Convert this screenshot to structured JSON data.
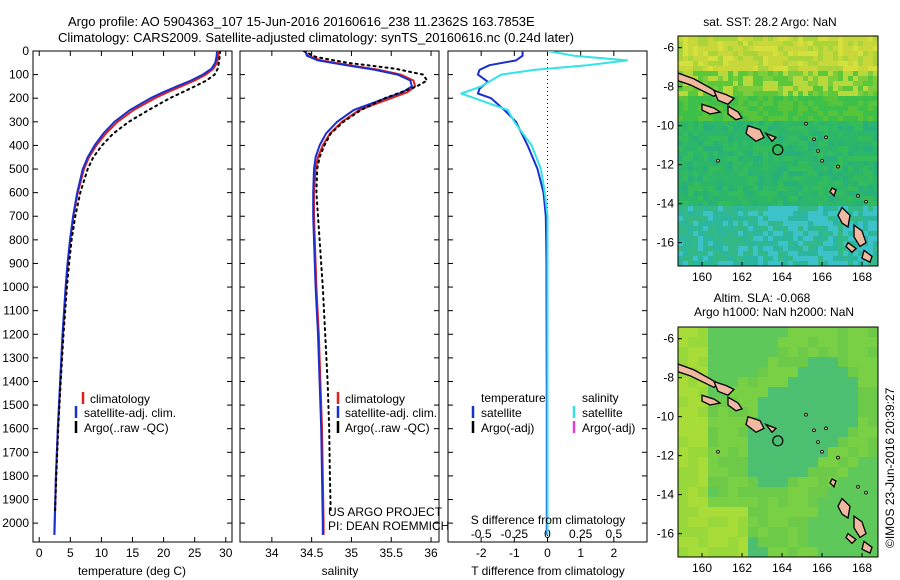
{
  "header": {
    "title_line1": "Argo profile: AO 5904363_107 15-Jun-2016 20160616_238 11.2362S 163.7853E",
    "title_line2": "Climatology: CARS2009. Satellite-adjusted climatology: synTS_20160616.nc (0.24d later)"
  },
  "side_label": "©IMOS 23-Jun-2016 20:39:27",
  "colors": {
    "climatology": "#e0201c",
    "satellite": "#1a2fd0",
    "argo": "#000000",
    "salinity_satellite": "#33e3e6",
    "salinity_argo": "#e040d0",
    "land": "#f0b8a0"
  },
  "chart_data": [
    {
      "id": "temperature",
      "type": "line",
      "xlabel": "temperature (deg C)",
      "ylabel": "",
      "xlim": [
        -1,
        31
      ],
      "ylim": [
        2080,
        0
      ],
      "xticks": [
        0,
        5,
        10,
        15,
        20,
        25,
        30
      ],
      "yticks": [
        0,
        100,
        200,
        300,
        400,
        500,
        600,
        700,
        800,
        900,
        1000,
        1100,
        1200,
        1300,
        1400,
        1500,
        1600,
        1700,
        1800,
        1900,
        2000
      ],
      "legend": [
        "climatology",
        "satellite-adj. clim.",
        "Argo(..raw -QC)"
      ],
      "legend_placement": "lower-center",
      "series": [
        {
          "name": "climatology",
          "depth": [
            0,
            25,
            50,
            75,
            100,
            125,
            150,
            175,
            200,
            250,
            300,
            350,
            400,
            450,
            500,
            600,
            700,
            800,
            900,
            1000,
            1200,
            1400,
            1600,
            1800,
            2000,
            2050
          ],
          "values": [
            28.9,
            28.8,
            28.6,
            28.0,
            26.8,
            25.0,
            22.8,
            20.6,
            18.6,
            15.2,
            12.6,
            10.7,
            9.2,
            8.0,
            7.2,
            6.2,
            5.5,
            5.0,
            4.6,
            4.3,
            3.8,
            3.4,
            3.0,
            2.7,
            2.5,
            2.45
          ],
          "style": "solid"
        },
        {
          "name": "satellite-adj. clim.",
          "depth": [
            0,
            25,
            50,
            75,
            100,
            125,
            150,
            175,
            200,
            250,
            300,
            350,
            400,
            450,
            500,
            600,
            700,
            800,
            900,
            1000,
            1200,
            1400,
            1600,
            1800,
            2000,
            2050
          ],
          "values": [
            28.6,
            28.5,
            28.3,
            27.7,
            26.3,
            24.4,
            22.1,
            19.9,
            17.9,
            14.6,
            12.1,
            10.3,
            8.9,
            7.8,
            7.0,
            6.1,
            5.45,
            4.95,
            4.55,
            4.25,
            3.75,
            3.35,
            2.98,
            2.68,
            2.48,
            2.43
          ],
          "style": "solid"
        },
        {
          "name": "Argo(..raw -QC)",
          "depth": [
            0,
            25,
            50,
            75,
            100,
            125,
            150,
            175,
            200,
            250,
            300,
            350,
            400,
            450,
            500,
            600,
            700,
            800,
            900,
            1000,
            1200,
            1400,
            1600,
            1800,
            1950
          ],
          "values": [
            29.1,
            29.0,
            28.9,
            28.7,
            28.2,
            26.9,
            25.0,
            23.0,
            21.0,
            17.6,
            14.4,
            11.9,
            10.1,
            8.7,
            7.8,
            6.6,
            5.8,
            5.2,
            4.8,
            4.45,
            3.9,
            3.45,
            3.05,
            2.75,
            2.55
          ],
          "style": "dotted"
        }
      ]
    },
    {
      "id": "salinity",
      "type": "line",
      "xlabel": "salinity",
      "ylabel": "",
      "xlim": [
        33.6,
        36.1
      ],
      "ylim": [
        2080,
        0
      ],
      "xticks": [
        34,
        34.5,
        35,
        35.5,
        36
      ],
      "xtick_labels": [
        "34",
        "34.5",
        "35",
        "35.5",
        "36"
      ],
      "legend": [
        "climatology",
        "satellite-adj. clim.",
        "Argo(..raw -QC)"
      ],
      "legend_placement": "lower-right",
      "annotation": [
        "US ARGO PROJECT",
        "PI: DEAN ROEMMICH"
      ],
      "series": [
        {
          "name": "climatology",
          "depth": [
            0,
            20,
            40,
            60,
            80,
            100,
            125,
            150,
            175,
            200,
            250,
            300,
            350,
            400,
            450,
            500,
            600,
            700,
            800,
            1000,
            1200,
            1400,
            1600,
            1800,
            2000,
            2050
          ],
          "values": [
            34.42,
            34.45,
            34.62,
            34.98,
            35.35,
            35.62,
            35.78,
            35.8,
            35.7,
            35.5,
            35.1,
            34.88,
            34.73,
            34.64,
            34.58,
            34.55,
            34.53,
            34.53,
            34.54,
            34.56,
            34.59,
            34.61,
            34.63,
            34.64,
            34.65,
            34.65
          ],
          "style": "solid"
        },
        {
          "name": "satellite-adj. clim.",
          "depth": [
            0,
            20,
            40,
            60,
            80,
            100,
            125,
            150,
            175,
            200,
            250,
            300,
            350,
            400,
            450,
            500,
            600,
            700,
            800,
            1000,
            1200,
            1400,
            1600,
            1800,
            2000,
            2050
          ],
          "values": [
            34.42,
            34.44,
            34.58,
            34.93,
            35.3,
            35.58,
            35.74,
            35.76,
            35.64,
            35.43,
            35.03,
            34.82,
            34.68,
            34.6,
            34.55,
            34.53,
            34.52,
            34.52,
            34.53,
            34.55,
            34.58,
            34.6,
            34.62,
            34.63,
            34.64,
            34.64
          ],
          "style": "solid"
        },
        {
          "name": "Argo(..raw -QC)",
          "depth": [
            0,
            25,
            50,
            75,
            100,
            125,
            150,
            175,
            200,
            250,
            300,
            350,
            400,
            450,
            500,
            600,
            700,
            800,
            900,
            1000,
            1200,
            1400,
            1600,
            1800,
            1950
          ],
          "values": [
            34.4,
            34.55,
            34.95,
            35.55,
            35.9,
            35.95,
            35.82,
            35.62,
            35.42,
            35.12,
            34.9,
            34.74,
            34.66,
            34.6,
            34.57,
            34.56,
            34.58,
            34.6,
            34.62,
            34.64,
            34.67,
            34.7,
            34.72,
            34.73,
            34.74
          ],
          "style": "dotted"
        }
      ]
    },
    {
      "id": "difference",
      "type": "line",
      "xlabel": "T difference from climatology",
      "top_xlabel": "S difference from climatology",
      "xlim": [
        -3.0,
        3.0
      ],
      "ylim": [
        2080,
        0
      ],
      "xticks": [
        -2,
        -1,
        0,
        1,
        2
      ],
      "top_xticks": [
        -0.5,
        -0.25,
        0,
        0.25,
        0.5
      ],
      "legend_temperature": {
        "title": "temperature",
        "items": [
          "satellite",
          "Argo(-adj)"
        ]
      },
      "legend_salinity": {
        "title": "salinity",
        "items": [
          "satellite",
          "Argo(-adj)"
        ]
      },
      "legend_placement": "lower-center",
      "series": [
        {
          "name": "temperature satellite",
          "depth": [
            0,
            20,
            40,
            60,
            80,
            100,
            130,
            160,
            180,
            200,
            250,
            300,
            400,
            500,
            600,
            700,
            800,
            900,
            1000,
            1500,
            2000,
            2050
          ],
          "values": [
            -0.75,
            -0.75,
            -0.95,
            -1.75,
            -2.05,
            -2.1,
            -1.8,
            -2.05,
            -2.1,
            -1.7,
            -1.3,
            -0.95,
            -0.6,
            -0.3,
            -0.12,
            -0.05,
            -0.04,
            -0.03,
            -0.03,
            -0.02,
            -0.02,
            -0.02
          ]
        },
        {
          "name": "salinity satellite",
          "depth": [
            0,
            20,
            40,
            60,
            80,
            100,
            150,
            180,
            200,
            250,
            300,
            400,
            500,
            600,
            700,
            800,
            1000,
            1500,
            2000,
            2050
          ],
          "values": [
            0.0,
            0.2,
            0.6,
            0.3,
            -0.1,
            -0.35,
            -0.5,
            -0.65,
            -0.55,
            -0.3,
            -0.25,
            -0.12,
            -0.05,
            -0.02,
            0.0,
            0.0,
            0.0,
            0.0,
            0.0,
            0.0
          ]
        }
      ]
    },
    {
      "id": "sst_map",
      "type": "heatmap",
      "title": "sat. SST: 28.2  Argo: NaN",
      "xlim": [
        158.8,
        168.8
      ],
      "ylim": [
        -17.2,
        -5.4
      ],
      "xticks": [
        160,
        162,
        164,
        166,
        168
      ],
      "yticks": [
        -6,
        -8,
        -10,
        -12,
        -14,
        -16
      ],
      "marker": {
        "lon": 163.79,
        "lat": -11.24
      }
    },
    {
      "id": "sla_map",
      "type": "heatmap",
      "title_line1": "Altim. SLA: -0.068",
      "title_line2": "Argo h1000: NaN  h2000: NaN",
      "xlim": [
        158.8,
        168.8
      ],
      "ylim": [
        -17.2,
        -5.4
      ],
      "xticks": [
        160,
        162,
        164,
        166,
        168
      ],
      "yticks": [
        -6,
        -8,
        -10,
        -12,
        -14,
        -16
      ],
      "marker": {
        "lon": 163.79,
        "lat": -11.24
      }
    }
  ]
}
